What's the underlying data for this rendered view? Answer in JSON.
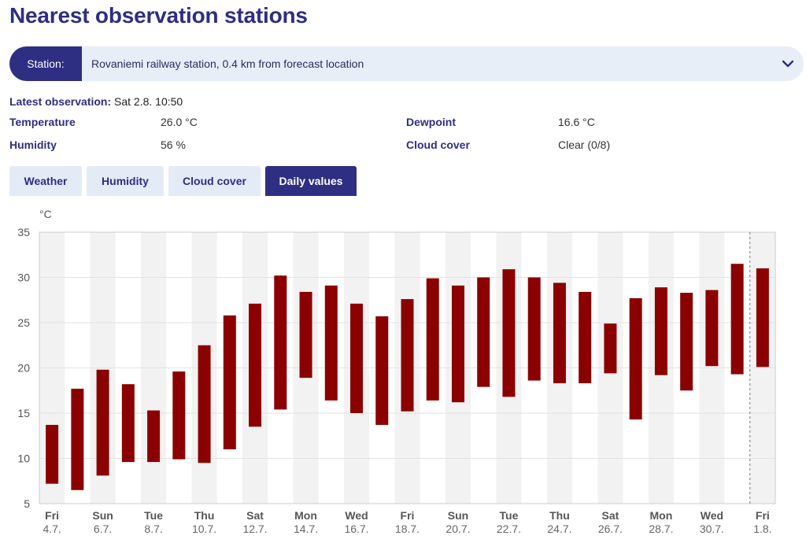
{
  "page": {
    "title": "Nearest observation stations"
  },
  "station": {
    "label": "Station:",
    "value": "Rovaniemi railway station, 0.4 km from forecast location"
  },
  "observation": {
    "latest_label": "Latest observation:",
    "latest_value": "Sat 2.8. 10:50",
    "temperature_label": "Temperature",
    "temperature_value": "26.0 °C",
    "dewpoint_label": "Dewpoint",
    "dewpoint_value": "16.6 °C",
    "humidity_label": "Humidity",
    "humidity_value": "56 %",
    "cloud_label": "Cloud cover",
    "cloud_value": "Clear (0/8)"
  },
  "tabs": [
    {
      "label": "Weather",
      "active": false
    },
    {
      "label": "Humidity",
      "active": false
    },
    {
      "label": "Cloud cover",
      "active": false
    },
    {
      "label": "Daily values",
      "active": true
    }
  ],
  "colors": {
    "accent": "#2e2e83",
    "bar": "#8b0000",
    "band": "#f2f2f2",
    "tab_bg": "#e3ebf6"
  },
  "chart_data": {
    "type": "bar",
    "subtype": "floating-range",
    "ylabel": "°C",
    "ylim": [
      5,
      35
    ],
    "yticks": [
      5,
      10,
      15,
      20,
      25,
      30,
      35
    ],
    "grid": true,
    "categories": [
      "4.7.",
      "5.7.",
      "6.7.",
      "7.7.",
      "8.7.",
      "9.7.",
      "10.7.",
      "11.7.",
      "12.7.",
      "13.7.",
      "14.7.",
      "15.7.",
      "16.7.",
      "17.7.",
      "18.7.",
      "19.7.",
      "20.7.",
      "21.7.",
      "22.7.",
      "23.7.",
      "24.7.",
      "25.7.",
      "26.7.",
      "27.7.",
      "28.7.",
      "29.7.",
      "30.7.",
      "31.7.",
      "1.8."
    ],
    "tick_labels": [
      {
        "day": "Fri",
        "date": "4.7."
      },
      {
        "day": "Sun",
        "date": "6.7."
      },
      {
        "day": "Tue",
        "date": "8.7."
      },
      {
        "day": "Thu",
        "date": "10.7."
      },
      {
        "day": "Sat",
        "date": "12.7."
      },
      {
        "day": "Mon",
        "date": "14.7."
      },
      {
        "day": "Wed",
        "date": "16.7."
      },
      {
        "day": "Fri",
        "date": "18.7."
      },
      {
        "day": "Sun",
        "date": "20.7."
      },
      {
        "day": "Tue",
        "date": "22.7."
      },
      {
        "day": "Thu",
        "date": "24.7."
      },
      {
        "day": "Sat",
        "date": "26.7."
      },
      {
        "day": "Mon",
        "date": "28.7."
      },
      {
        "day": "Wed",
        "date": "30.7."
      },
      {
        "day": "Fri",
        "date": "1.8."
      }
    ],
    "series": [
      {
        "name": "min",
        "values": [
          7.2,
          6.5,
          8.1,
          9.6,
          9.6,
          9.9,
          9.5,
          11.0,
          13.5,
          15.4,
          18.9,
          16.4,
          15.0,
          13.7,
          15.2,
          16.4,
          16.2,
          17.9,
          16.8,
          18.6,
          18.3,
          18.3,
          19.4,
          14.3,
          19.2,
          17.5,
          20.2,
          19.3,
          20.1
        ]
      },
      {
        "name": "max",
        "values": [
          13.7,
          17.7,
          19.8,
          18.2,
          15.3,
          19.6,
          22.5,
          25.8,
          27.1,
          30.2,
          28.4,
          29.1,
          27.1,
          25.7,
          27.6,
          29.9,
          29.1,
          30.0,
          30.9,
          30.0,
          29.4,
          28.4,
          24.9,
          27.7,
          28.9,
          28.3,
          28.6,
          31.5,
          31.0
        ]
      }
    ]
  }
}
